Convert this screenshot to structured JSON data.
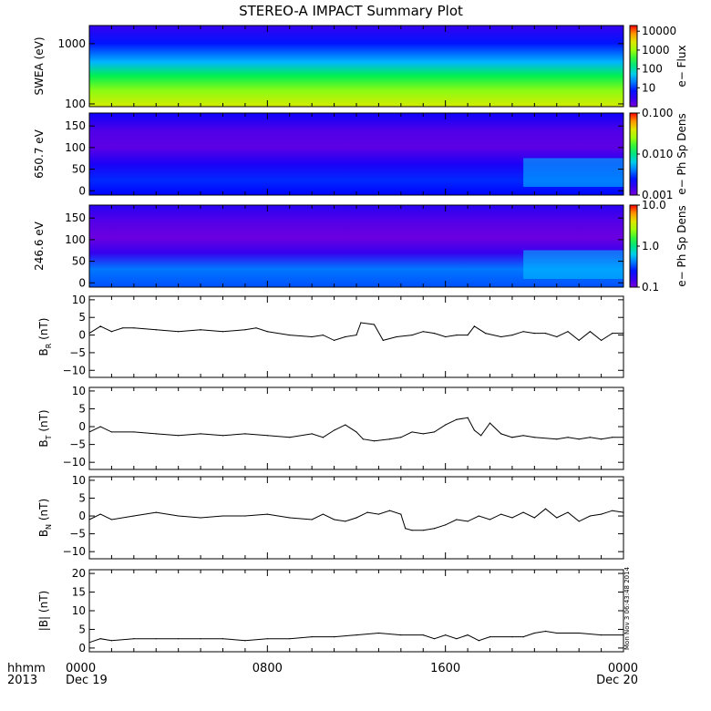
{
  "title": "STEREO-A IMPACT Summary Plot",
  "stamp": "Mon Nov 3 06:43:48 2014",
  "time_axis": {
    "row_labels": [
      "hhmm",
      "2013"
    ],
    "ticks": [
      {
        "hours": 0,
        "label": "0000",
        "sub": "Dec 19"
      },
      {
        "hours": 8,
        "label": "0800",
        "sub": ""
      },
      {
        "hours": 16,
        "label": "1600",
        "sub": ""
      },
      {
        "hours": 24,
        "label": "0000",
        "sub": "Dec 20"
      }
    ],
    "range_hours": [
      0,
      24
    ]
  },
  "chart_data": [
    {
      "type": "heatmap",
      "ylabel": "SWEA (eV)",
      "yscale": "log",
      "ylim": [
        90,
        2000
      ],
      "yticks": [
        {
          "v": 100,
          "label": "100"
        },
        {
          "v": 1000,
          "label": "1000"
        }
      ],
      "colorbar": {
        "label": "e− Flux",
        "scale": "log",
        "range": [
          1,
          20000
        ],
        "palette": "rainbow",
        "ticks": [
          {
            "v": 10,
            "label": "10"
          },
          {
            "v": 100,
            "label": "100"
          },
          {
            "v": 1000,
            "label": "1000"
          },
          {
            "v": 10000,
            "label": "10000"
          }
        ]
      }
    },
    {
      "type": "heatmap",
      "ylabel": "650.7 eV",
      "yscale": "linear",
      "ylim": [
        -10,
        180
      ],
      "yticks": [
        {
          "v": 0,
          "label": "0"
        },
        {
          "v": 50,
          "label": "50"
        },
        {
          "v": 100,
          "label": "100"
        },
        {
          "v": 150,
          "label": "150"
        }
      ],
      "colorbar": {
        "label": "e− Ph Sp Dens",
        "scale": "log",
        "range": [
          0.001,
          0.1
        ],
        "palette": "rainbow",
        "ticks": [
          {
            "v": 0.001,
            "label": "0.001"
          },
          {
            "v": 0.01,
            "label": "0.010"
          },
          {
            "v": 0.1,
            "label": "0.100"
          }
        ]
      }
    },
    {
      "type": "heatmap",
      "ylabel": "246.6 eV",
      "yscale": "linear",
      "ylim": [
        -10,
        180
      ],
      "yticks": [
        {
          "v": 0,
          "label": "0"
        },
        {
          "v": 50,
          "label": "50"
        },
        {
          "v": 100,
          "label": "100"
        },
        {
          "v": 150,
          "label": "150"
        }
      ],
      "colorbar": {
        "label": "e− Ph Sp Dens",
        "scale": "log",
        "range": [
          0.1,
          10
        ],
        "palette": "rainbow",
        "ticks": [
          {
            "v": 0.1,
            "label": "0.1"
          },
          {
            "v": 1,
            "label": "1.0"
          },
          {
            "v": 10,
            "label": "10.0"
          }
        ]
      }
    },
    {
      "type": "line",
      "ylabel_main": "B",
      "ylabel_sub": "R",
      "ylabel_unit": "(nT)",
      "ylim": [
        -12,
        11
      ],
      "yticks": [
        {
          "v": -10,
          "label": "−10"
        },
        {
          "v": -5,
          "label": "−5"
        },
        {
          "v": 0,
          "label": "0"
        },
        {
          "v": 5,
          "label": "5"
        },
        {
          "v": 10,
          "label": "10"
        }
      ],
      "x": [
        0,
        0.5,
        1,
        1.5,
        2,
        3,
        4,
        5,
        6,
        7,
        7.5,
        8,
        9,
        10,
        10.5,
        11,
        11.5,
        12,
        12.2,
        12.8,
        13.2,
        13.8,
        14.5,
        15,
        15.5,
        16,
        16.5,
        17,
        17.3,
        17.8,
        18.5,
        19,
        19.5,
        20,
        20.5,
        21,
        21.5,
        22,
        22.5,
        23,
        23.5,
        24
      ],
      "y": [
        0.5,
        2.5,
        1,
        2,
        2,
        1.5,
        1,
        1.5,
        1,
        1.5,
        2,
        1,
        0,
        -0.5,
        0,
        -1.5,
        -0.5,
        0,
        3.5,
        3,
        -1.5,
        -0.5,
        0,
        1,
        0.5,
        -0.5,
        0,
        0,
        2.5,
        0.5,
        -0.5,
        0,
        1,
        0.5,
        0.5,
        -0.5,
        1,
        -1.5,
        1,
        -1.5,
        0.5,
        0.5
      ]
    },
    {
      "type": "line",
      "ylabel_main": "B",
      "ylabel_sub": "T",
      "ylabel_unit": "(nT)",
      "ylim": [
        -12,
        11
      ],
      "yticks": [
        {
          "v": -10,
          "label": "−10"
        },
        {
          "v": -5,
          "label": "−5"
        },
        {
          "v": 0,
          "label": "0"
        },
        {
          "v": 5,
          "label": "5"
        },
        {
          "v": 10,
          "label": "10"
        }
      ],
      "x": [
        0,
        0.5,
        1,
        2,
        3,
        4,
        5,
        6,
        7,
        8,
        9,
        10,
        10.5,
        11,
        11.5,
        12,
        12.3,
        12.8,
        13.5,
        14,
        14.5,
        15,
        15.5,
        16,
        16.5,
        17,
        17.3,
        17.6,
        18,
        18.5,
        19,
        19.5,
        20,
        21,
        21.5,
        22,
        22.5,
        23,
        23.5,
        24
      ],
      "y": [
        -1.5,
        0,
        -1.5,
        -1.5,
        -2,
        -2.5,
        -2,
        -2.5,
        -2,
        -2.5,
        -3,
        -2,
        -3,
        -1,
        0.5,
        -1.5,
        -3.5,
        -4,
        -3.5,
        -3,
        -1.5,
        -2,
        -1.5,
        0.5,
        2,
        2.5,
        -1,
        -2.5,
        1,
        -2,
        -3,
        -2.5,
        -3,
        -3.5,
        -3,
        -3.5,
        -3,
        -3.5,
        -3,
        -3
      ]
    },
    {
      "type": "line",
      "ylabel_main": "B",
      "ylabel_sub": "N",
      "ylabel_unit": "(nT)",
      "ylim": [
        -12,
        11
      ],
      "yticks": [
        {
          "v": -10,
          "label": "−10"
        },
        {
          "v": -5,
          "label": "−5"
        },
        {
          "v": 0,
          "label": "0"
        },
        {
          "v": 5,
          "label": "5"
        },
        {
          "v": 10,
          "label": "10"
        }
      ],
      "x": [
        0,
        0.5,
        1,
        2,
        3,
        4,
        5,
        6,
        7,
        8,
        9,
        10,
        10.5,
        11,
        11.5,
        12,
        12.5,
        13,
        13.5,
        14,
        14.2,
        14.5,
        15,
        15.5,
        16,
        16.5,
        17,
        17.5,
        18,
        18.5,
        19,
        19.5,
        20,
        20.5,
        21,
        21.5,
        22,
        22.5,
        23,
        23.5,
        24
      ],
      "y": [
        -1,
        0.5,
        -1,
        0,
        1,
        0,
        -0.5,
        0,
        0,
        0.5,
        -0.5,
        -1,
        0.5,
        -1,
        -1.5,
        -0.5,
        1,
        0.5,
        1.5,
        0.5,
        -3.5,
        -4,
        -4,
        -3.5,
        -2.5,
        -1,
        -1.5,
        0,
        -1,
        0.5,
        -0.5,
        1,
        -0.5,
        2,
        -0.5,
        1,
        -1.5,
        0,
        0.5,
        1.5,
        1
      ]
    },
    {
      "type": "line",
      "ylabel_main": "|B|",
      "ylabel_sub": "",
      "ylabel_unit": "(nT)",
      "ylim": [
        -1,
        21
      ],
      "yticks": [
        {
          "v": 0,
          "label": "0"
        },
        {
          "v": 5,
          "label": "5"
        },
        {
          "v": 10,
          "label": "10"
        },
        {
          "v": 15,
          "label": "15"
        },
        {
          "v": 20,
          "label": "20"
        }
      ],
      "x": [
        0,
        0.5,
        1,
        2,
        3,
        4,
        5,
        6,
        7,
        8,
        9,
        10,
        11,
        12,
        13,
        14,
        15,
        15.5,
        16,
        16.5,
        17,
        17.5,
        18,
        19,
        19.5,
        20,
        20.5,
        21,
        22,
        23,
        24
      ],
      "y": [
        1.5,
        2.5,
        2,
        2.5,
        2.5,
        2.5,
        2.5,
        2.5,
        2,
        2.5,
        2.5,
        3,
        3,
        3.5,
        4,
        3.5,
        3.5,
        2.5,
        3.5,
        2.5,
        3.5,
        2,
        3,
        3,
        3,
        4,
        4.5,
        4,
        4,
        3.5,
        3.5
      ]
    }
  ]
}
